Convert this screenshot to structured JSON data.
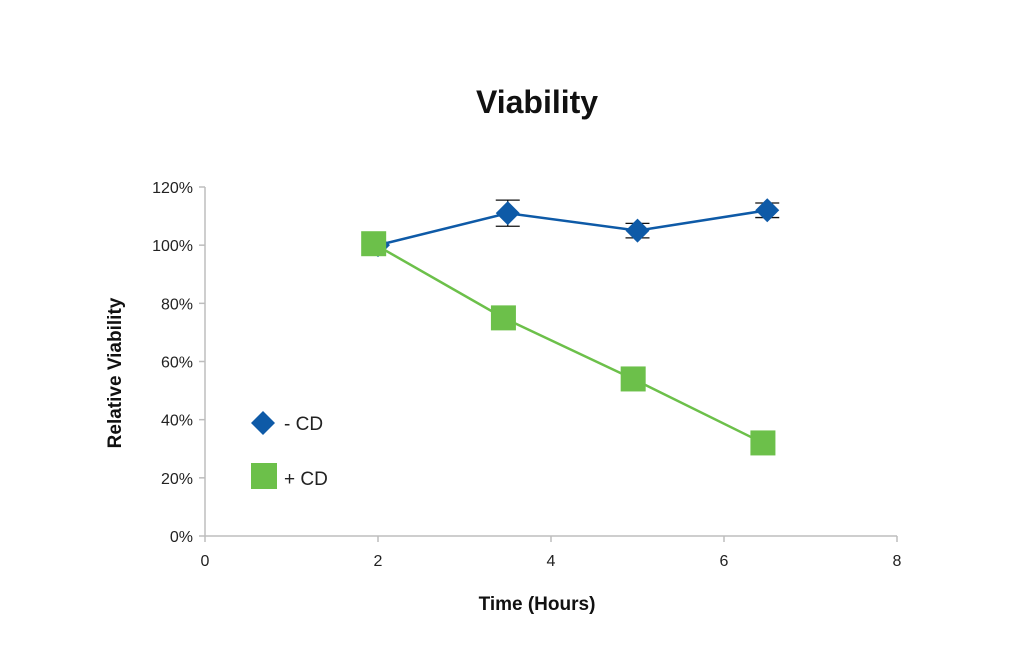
{
  "chart_data": {
    "type": "line",
    "title": "Viability",
    "xlabel": "Time (Hours)",
    "ylabel": "Relative Viability",
    "xlim": [
      0,
      8
    ],
    "ylim": [
      0,
      120
    ],
    "x_ticks": [
      0,
      2,
      4,
      6,
      8
    ],
    "x_tick_labels": [
      "0",
      "2",
      "4",
      "6",
      "8"
    ],
    "y_ticks": [
      0,
      20,
      40,
      60,
      80,
      100,
      120
    ],
    "y_tick_labels": [
      "0%",
      "20%",
      "40%",
      "60%",
      "80%",
      "100%",
      "120%"
    ],
    "grid": false,
    "legend_position": "left",
    "series": [
      {
        "name": "- CD",
        "marker": "diamond",
        "color": "#0e5aa7",
        "x": [
          2,
          3.5,
          5,
          6.5
        ],
        "y": [
          100,
          111,
          105,
          112
        ],
        "error": [
          0,
          4.5,
          2.5,
          2.5
        ]
      },
      {
        "name": "+ CD",
        "marker": "square",
        "color": "#6cc04a",
        "x": [
          1.95,
          3.45,
          4.95,
          6.45
        ],
        "y": [
          100.5,
          75,
          54,
          32
        ],
        "error": [
          0,
          0,
          0,
          0
        ]
      }
    ]
  }
}
